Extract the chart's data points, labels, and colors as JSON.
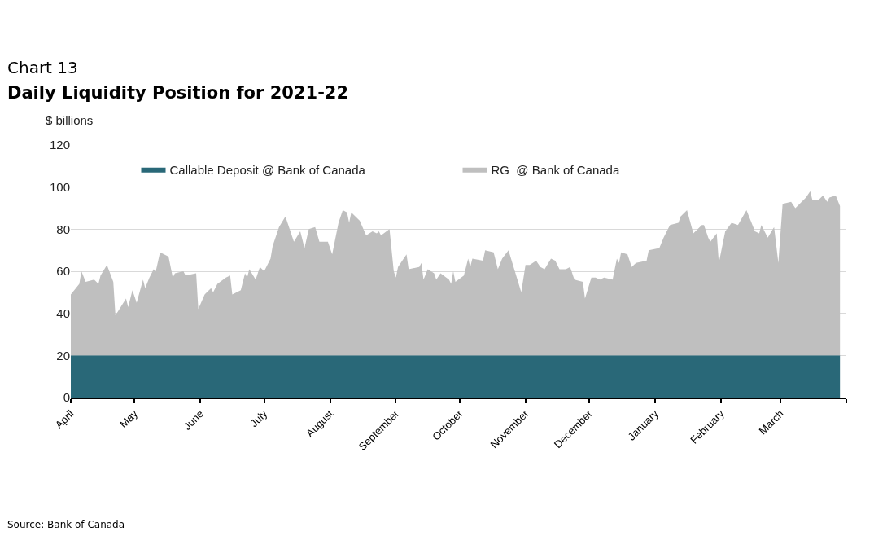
{
  "chart_data": {
    "type": "area",
    "stacked": true,
    "title": "Chart 13",
    "subtitle": "Daily Liquidity Position for 2021-22",
    "ylabel": "$ billions",
    "annotations": [
      "Source: Bank of Canada"
    ],
    "x": [
      "2021-04-01",
      "2021-04-05",
      "2021-04-06",
      "2021-04-08",
      "2021-04-12",
      "2021-04-14",
      "2021-04-15",
      "2021-04-18",
      "2021-04-21",
      "2021-04-22",
      "2021-04-27",
      "2021-04-28",
      "2021-04-30",
      "2021-05-02",
      "2021-05-05",
      "2021-05-06",
      "2021-05-08",
      "2021-05-10",
      "2021-05-11",
      "2021-05-13",
      "2021-05-17",
      "2021-05-19",
      "2021-05-20",
      "2021-05-24",
      "2021-05-25",
      "2021-05-30",
      "2021-05-31",
      "2021-06-03",
      "2021-06-06",
      "2021-06-07",
      "2021-06-09",
      "2021-06-13",
      "2021-06-15",
      "2021-06-16",
      "2021-06-20",
      "2021-06-22",
      "2021-06-23",
      "2021-06-24",
      "2021-06-27",
      "2021-06-29",
      "2021-07-01",
      "2021-07-04",
      "2021-07-05",
      "2021-07-08",
      "2021-07-11",
      "2021-07-15",
      "2021-07-18",
      "2021-07-20",
      "2021-07-22",
      "2021-07-25",
      "2021-07-27",
      "2021-07-31",
      "2021-08-02",
      "2021-08-05",
      "2021-08-07",
      "2021-08-09",
      "2021-08-10",
      "2021-08-11",
      "2021-08-15",
      "2021-08-18",
      "2021-08-21",
      "2021-08-23",
      "2021-08-24",
      "2021-08-25",
      "2021-08-29",
      "2021-08-31",
      "2021-09-01",
      "2021-09-02",
      "2021-09-06",
      "2021-09-07",
      "2021-09-12",
      "2021-09-13",
      "2021-09-14",
      "2021-09-16",
      "2021-09-19",
      "2021-09-20",
      "2021-09-22",
      "2021-09-26",
      "2021-09-27",
      "2021-09-28",
      "2021-09-29",
      "2021-10-03",
      "2021-10-05",
      "2021-10-06",
      "2021-10-07",
      "2021-10-12",
      "2021-10-13",
      "2021-10-17",
      "2021-10-19",
      "2021-10-21",
      "2021-10-24",
      "2021-10-27",
      "2021-10-30",
      "2021-11-01",
      "2021-11-03",
      "2021-11-06",
      "2021-11-08",
      "2021-11-10",
      "2021-11-13",
      "2021-11-15",
      "2021-11-17",
      "2021-11-20",
      "2021-11-22",
      "2021-11-24",
      "2021-11-28",
      "2021-11-29",
      "2021-12-02",
      "2021-12-04",
      "2021-12-06",
      "2021-12-08",
      "2021-12-12",
      "2021-12-14",
      "2021-12-15",
      "2021-12-16",
      "2021-12-19",
      "2021-12-21",
      "2021-12-23",
      "2021-12-28",
      "2021-12-29",
      "2022-01-03",
      "2022-01-05",
      "2022-01-08",
      "2022-01-12",
      "2022-01-13",
      "2022-01-16",
      "2022-01-19",
      "2022-01-23",
      "2022-01-24",
      "2022-01-26",
      "2022-01-27",
      "2022-01-30",
      "2022-01-31",
      "2022-02-03",
      "2022-02-06",
      "2022-02-09",
      "2022-02-13",
      "2022-02-15",
      "2022-02-17",
      "2022-02-19",
      "2022-02-20",
      "2022-02-23",
      "2022-02-26",
      "2022-02-28",
      "2022-03-02",
      "2022-03-06",
      "2022-03-08",
      "2022-03-13",
      "2022-03-15",
      "2022-03-16",
      "2022-03-19",
      "2022-03-21",
      "2022-03-23",
      "2022-03-24",
      "2022-03-27",
      "2022-03-29"
    ],
    "series": [
      {
        "name": "Callable Deposit @ Bank of Canada",
        "color": "#296878",
        "values": [
          20,
          20,
          20,
          20,
          20,
          20,
          20,
          20,
          20,
          20,
          20,
          20,
          20,
          20,
          20,
          20,
          20,
          20,
          20,
          20,
          20,
          20,
          20,
          20,
          20,
          20,
          20,
          20,
          20,
          20,
          20,
          20,
          20,
          20,
          20,
          20,
          20,
          20,
          20,
          20,
          20,
          20,
          20,
          20,
          20,
          20,
          20,
          20,
          20,
          20,
          20,
          20,
          20,
          20,
          20,
          20,
          20,
          20,
          20,
          20,
          20,
          20,
          20,
          20,
          20,
          20,
          20,
          20,
          20,
          20,
          20,
          20,
          20,
          20,
          20,
          20,
          20,
          20,
          20,
          20,
          20,
          20,
          20,
          20,
          20,
          20,
          20,
          20,
          20,
          20,
          20,
          20,
          20,
          20,
          20,
          20,
          20,
          20,
          20,
          20,
          20,
          20,
          20,
          20,
          20,
          20,
          20,
          20,
          20,
          20,
          20,
          20,
          20,
          20,
          20,
          20,
          20,
          20,
          20,
          20,
          20,
          20,
          20,
          20,
          20,
          20,
          20,
          20,
          20,
          20,
          20,
          20,
          20,
          20,
          20,
          20,
          20,
          20,
          20,
          20,
          20,
          20,
          20,
          20,
          20,
          20,
          20,
          20,
          20,
          20,
          20,
          20,
          20,
          20,
          20
        ]
      },
      {
        "name": "RG  @ Bank of Canada",
        "color": "#bfbfbf",
        "values": [
          29,
          34,
          40,
          35,
          36,
          34,
          38,
          43,
          35,
          19,
          27,
          23,
          31,
          25,
          36,
          32,
          37,
          41,
          40,
          49,
          47,
          37,
          39,
          40,
          38,
          39,
          22,
          29,
          32,
          30,
          34,
          37,
          38,
          29,
          31,
          39,
          37,
          41,
          36,
          42,
          40,
          46,
          52,
          61,
          66,
          54,
          59,
          51,
          60,
          61,
          54,
          54,
          48,
          63,
          69,
          68,
          63,
          68,
          64,
          57,
          59,
          58,
          59,
          57,
          60,
          40,
          37,
          42,
          48,
          41,
          42,
          44,
          36,
          41,
          39,
          36,
          39,
          36,
          34,
          40,
          35,
          38,
          46,
          42,
          46,
          45,
          50,
          49,
          41,
          46,
          50,
          40,
          30,
          43,
          43,
          45,
          42,
          41,
          46,
          45,
          41,
          41,
          42,
          36,
          35,
          27,
          37,
          37,
          36,
          37,
          36,
          46,
          44,
          49,
          48,
          42,
          44,
          45,
          50,
          51,
          56,
          62,
          63,
          66,
          69,
          58,
          62,
          62,
          56,
          54,
          58,
          44,
          59,
          63,
          62,
          69,
          64,
          59,
          58,
          62,
          56,
          61,
          44,
          72,
          73,
          70,
          75,
          78,
          74,
          74,
          76,
          73,
          75,
          76,
          71
        ]
      }
    ],
    "xlim": [
      "2021-04-01",
      "2022-04-01"
    ],
    "xticks": [
      {
        "value": "2021-04-01",
        "label": "April"
      },
      {
        "value": "2021-05-01",
        "label": "May"
      },
      {
        "value": "2021-06-01",
        "label": "June"
      },
      {
        "value": "2021-07-01",
        "label": "July"
      },
      {
        "value": "2021-08-01",
        "label": "August"
      },
      {
        "value": "2021-09-01",
        "label": "September"
      },
      {
        "value": "2021-10-01",
        "label": "October"
      },
      {
        "value": "2021-11-01",
        "label": "November"
      },
      {
        "value": "2021-12-01",
        "label": "December"
      },
      {
        "value": "2022-01-01",
        "label": "January"
      },
      {
        "value": "2022-02-01",
        "label": "February"
      },
      {
        "value": "2022-03-01",
        "label": "March"
      },
      {
        "value": "2022-04-01",
        "label": null
      }
    ],
    "ylim": [
      0,
      120
    ],
    "yticks": [
      0,
      20,
      40,
      60,
      80,
      100,
      120
    ],
    "grid": "y",
    "legend": "top"
  }
}
